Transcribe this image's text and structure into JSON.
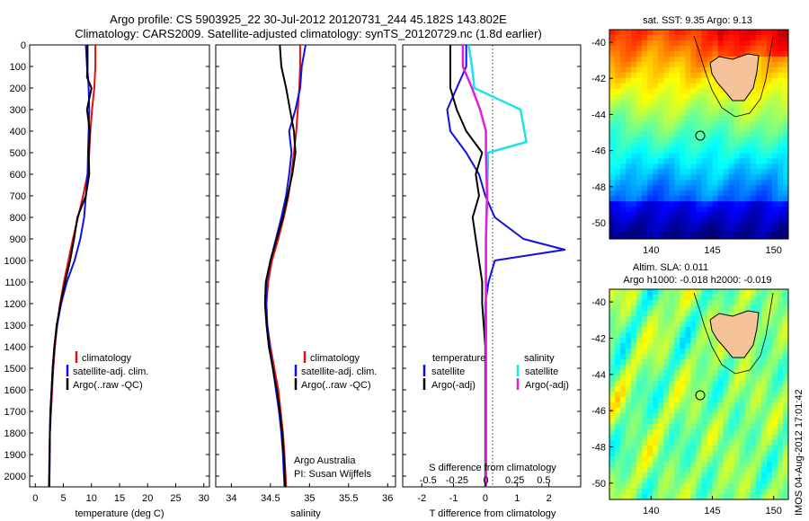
{
  "header": {
    "line1": "Argo profile: CS 5903925_22 30-Jul-2012 20120731_244 45.182S 143.802E",
    "line2": "Climatology: CARS2009. Satellite-adjusted climatology: synTS_20120729.nc (1.8d earlier)"
  },
  "depth_axis": {
    "ticks": [
      "0",
      "100",
      "200",
      "300",
      "400",
      "500",
      "600",
      "700",
      "800",
      "900",
      "1000",
      "1100",
      "1200",
      "1300",
      "1400",
      "1500",
      "1600",
      "1700",
      "1800",
      "1900",
      "2000"
    ]
  },
  "colors": {
    "climatology": "#e01010",
    "satellite": "#1010e0",
    "argo": "#000000",
    "salinity_satellite": "#20e0e8",
    "salinity_argo": "#e020d8",
    "land": "#f5c29a"
  },
  "legend": {
    "climatology": "climatology",
    "satellite_adj": "satellite-adj. clim.",
    "argo": "Argo(..raw -QC)"
  },
  "legend_diff": {
    "temp_header": "temperature",
    "sal_header": "salinity",
    "satellite": "satellite",
    "argo": "Argo(-adj)"
  },
  "credits": {
    "line1": "Argo Australia",
    "line2": "PI: Susan Wijffels"
  },
  "diff_axes": {
    "s_label": "S difference from climatology",
    "s_ticks": [
      "-0.5",
      "-0.25",
      "0",
      "0.25",
      "0.5"
    ],
    "t_label": "T difference from climatology",
    "t_ticks": [
      "-2",
      "-1",
      "0",
      "1",
      "2"
    ]
  },
  "map_sst": {
    "title": "sat. SST: 9.35 Argo: 9.13",
    "y_ticks": [
      "-40",
      "-42",
      "-44",
      "-46",
      "-48",
      "-50"
    ],
    "x_ticks": [
      "140",
      "145",
      "150"
    ]
  },
  "map_sla": {
    "title1": "Altim. SLA: 0.011",
    "title2": "Argo h1000: -0.018 h2000: -0.019",
    "y_ticks": [
      "-40",
      "-42",
      "-44",
      "-46",
      "-48",
      "-50"
    ],
    "x_ticks": [
      "140",
      "145",
      "150"
    ]
  },
  "watermark": "IMOS 04-Aug-2012 17:01:42",
  "chart_data": [
    {
      "type": "line",
      "xlabel": "temperature (deg C)",
      "ylabel": "",
      "xlim": [
        -1,
        31
      ],
      "ylim": [
        2050,
        0
      ],
      "x_ticks": [
        "0",
        "5",
        "10",
        "15",
        "20",
        "25",
        "30"
      ],
      "series": [
        {
          "name": "climatology",
          "x": [
            10.7,
            10.7,
            10.6,
            10.5,
            10.1,
            9.8,
            9.6,
            9.3,
            8.5,
            7.6,
            6.7,
            5.9,
            5.1,
            4.4,
            3.9,
            3.5,
            3.2,
            3.0,
            2.8,
            2.6,
            2.4
          ],
          "y": [
            0,
            100,
            150,
            200,
            300,
            400,
            500,
            600,
            700,
            800,
            900,
            1000,
            1100,
            1200,
            1300,
            1400,
            1500,
            1600,
            1700,
            1800,
            2050
          ]
        },
        {
          "name": "satellite-adj. clim.",
          "x": [
            9.0,
            9.2,
            9.4,
            9.5,
            9.6,
            9.5,
            9.4,
            9.3,
            9.0,
            8.7,
            8.0,
            7.0,
            5.6,
            4.6,
            3.9,
            3.4,
            3.1,
            2.9,
            2.7,
            2.6,
            2.5
          ],
          "y": [
            0,
            100,
            150,
            200,
            300,
            400,
            500,
            600,
            700,
            800,
            900,
            1000,
            1100,
            1200,
            1300,
            1400,
            1500,
            1600,
            1700,
            1800,
            2050
          ]
        },
        {
          "name": "Argo(..raw -QC)",
          "x": [
            9.3,
            9.3,
            9.2,
            10.0,
            9.2,
            9.7,
            9.5,
            9.6,
            9.0,
            7.5,
            6.9,
            6.2,
            5.3,
            4.5,
            3.8,
            3.4,
            3.1,
            2.9,
            2.7,
            2.6,
            2.5
          ],
          "y": [
            0,
            100,
            150,
            200,
            300,
            400,
            500,
            600,
            700,
            800,
            900,
            1000,
            1100,
            1200,
            1300,
            1400,
            1500,
            1600,
            1700,
            1800,
            2050
          ]
        }
      ]
    },
    {
      "type": "line",
      "xlabel": "salinity",
      "ylabel": "",
      "xlim": [
        33.8,
        36.1
      ],
      "ylim": [
        2050,
        0
      ],
      "x_ticks": [
        "34",
        "34.5",
        "35",
        "35.5",
        "36"
      ],
      "series": [
        {
          "name": "climatology",
          "x": [
            34.88,
            34.88,
            34.87,
            34.85,
            34.83,
            34.8,
            34.77,
            34.73,
            34.67,
            34.6,
            34.52,
            34.47,
            34.45,
            34.46,
            34.5,
            34.55,
            34.6,
            34.63,
            34.66,
            34.68,
            34.7
          ],
          "y": [
            0,
            100,
            200,
            300,
            400,
            500,
            600,
            700,
            800,
            900,
            1000,
            1100,
            1200,
            1300,
            1400,
            1500,
            1600,
            1700,
            1800,
            1900,
            2050
          ]
        },
        {
          "name": "satellite-adj. clim.",
          "x": [
            34.95,
            34.9,
            34.88,
            34.82,
            34.74,
            34.77,
            34.74,
            34.7,
            34.64,
            34.57,
            34.5,
            34.45,
            34.44,
            34.46,
            34.49,
            34.53,
            34.57,
            34.61,
            34.64,
            34.66,
            34.68
          ],
          "y": [
            0,
            100,
            200,
            300,
            400,
            500,
            600,
            700,
            800,
            900,
            1000,
            1100,
            1200,
            1300,
            1400,
            1500,
            1600,
            1700,
            1800,
            1900,
            2050
          ]
        },
        {
          "name": "Argo(..raw -QC)",
          "x": [
            34.62,
            34.64,
            34.7,
            34.75,
            34.8,
            34.82,
            34.78,
            34.72,
            34.66,
            34.58,
            34.5,
            34.44,
            34.43,
            34.45,
            34.48,
            34.53,
            34.58,
            34.62,
            34.65,
            34.67,
            34.69
          ],
          "y": [
            0,
            100,
            200,
            300,
            400,
            500,
            600,
            700,
            800,
            900,
            1000,
            1100,
            1200,
            1300,
            1400,
            1500,
            1600,
            1700,
            1800,
            1900,
            2050
          ]
        }
      ]
    },
    {
      "type": "line",
      "xlabel": "T difference from climatology",
      "ylabel": "",
      "xlim": [
        -2.6,
        3.0
      ],
      "ylim": [
        2050,
        0
      ],
      "x_ticks": [
        "-2",
        "-1",
        "0",
        "1",
        "2"
      ],
      "series": [
        {
          "name": "temperature satellite",
          "x": [
            -0.6,
            -0.6,
            -0.9,
            -1.2,
            -1.1,
            -0.6,
            -0.2,
            0.0,
            0.3,
            1.2,
            2.5,
            0.3,
            0.1,
            0.0,
            0.0,
            0.0,
            0.0,
            0.0,
            0.0,
            0.0
          ],
          "y": [
            0,
            100,
            200,
            300,
            400,
            500,
            600,
            700,
            800,
            900,
            950,
            1000,
            1100,
            1200,
            1400,
            1600,
            1700,
            1800,
            1900,
            2050
          ]
        },
        {
          "name": "temperature Argo(-adj)",
          "x": [
            -1.1,
            -1.1,
            -1.1,
            -0.9,
            -0.6,
            -0.1,
            -0.3,
            -0.2,
            -0.4,
            -0.3,
            -0.2,
            -0.1,
            -0.1,
            0.0,
            0.0,
            0.0,
            0.0,
            0.0
          ],
          "y": [
            0,
            100,
            200,
            300,
            400,
            500,
            600,
            700,
            800,
            900,
            1000,
            1100,
            1200,
            1400,
            1600,
            1700,
            1800,
            2050
          ]
        }
      ]
    },
    {
      "type": "line",
      "xlabel": "S difference from climatology",
      "ylabel": "",
      "xlim": [
        -0.72,
        0.82
      ],
      "ylim": [
        2050,
        0
      ],
      "x_ticks": [
        "-0.5",
        "-0.25",
        "0",
        "0.25",
        "0.5"
      ],
      "series": [
        {
          "name": "salinity satellite",
          "x": [
            -0.15,
            -0.12,
            -0.1,
            0.3,
            0.35,
            0.02,
            0.01,
            0.0,
            0.0,
            0.0,
            0.0,
            0.0,
            0.0,
            0.0
          ],
          "y": [
            0,
            100,
            200,
            300,
            450,
            500,
            700,
            900,
            1100,
            1300,
            1500,
            1700,
            1900,
            2050
          ]
        },
        {
          "name": "salinity Argo(-adj)",
          "x": [
            -0.2,
            -0.2,
            -0.12,
            -0.05,
            0.0,
            0.0,
            0.01,
            0.0,
            0.0,
            0.0,
            0.0,
            0.0,
            0.0
          ],
          "y": [
            0,
            100,
            200,
            300,
            400,
            500,
            700,
            900,
            1100,
            1300,
            1500,
            1700,
            2050
          ]
        }
      ]
    }
  ]
}
